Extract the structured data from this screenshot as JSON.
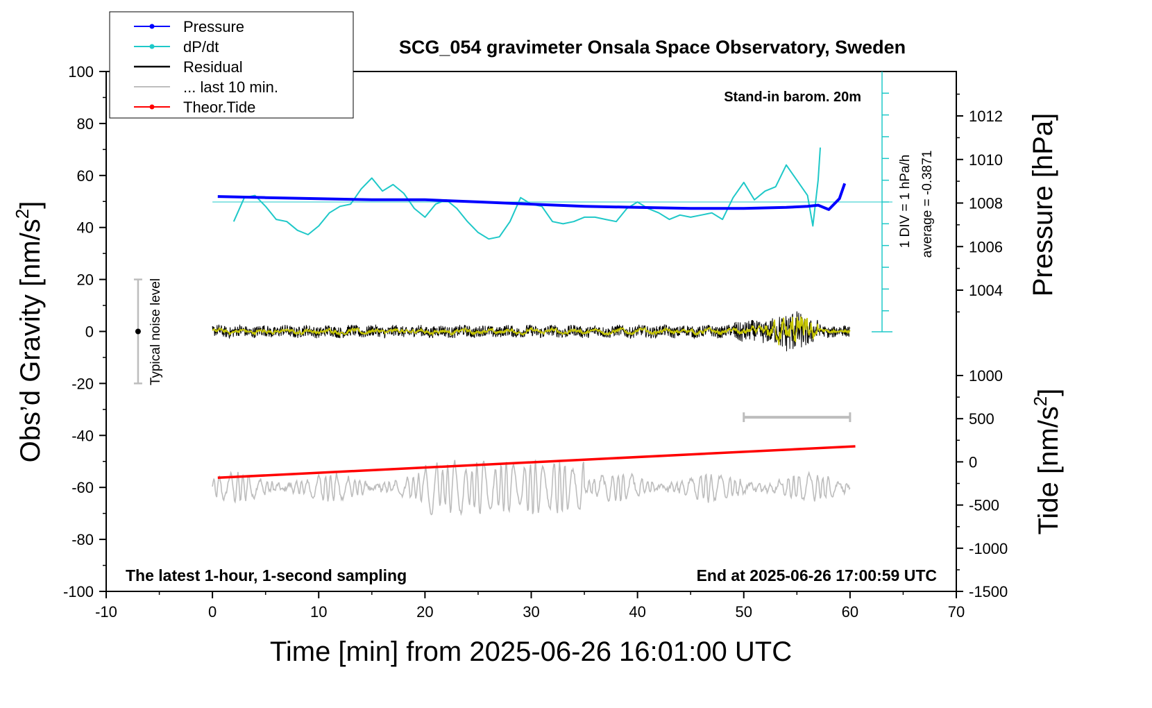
{
  "chart_data": {
    "type": "line",
    "title": "SCG_054 gravimeter Onsala Space Observatory, Sweden",
    "xlabel": "Time [min] from 2025-06-26 16:01:00 UTC",
    "xlim": [
      -10,
      70
    ],
    "x_ticks": [
      "-10",
      "0",
      "10",
      "20",
      "30",
      "40",
      "50",
      "60",
      "70"
    ],
    "left_axis": {
      "label_main": "Obs’d Gravity [nm/s",
      "label_sup": "2",
      "label_end": "]",
      "ylim": [
        -100,
        100
      ],
      "ticks": [
        "-100",
        "-80",
        "-60",
        "-40",
        "-20",
        "0",
        "20",
        "40",
        "60",
        "80",
        "100"
      ]
    },
    "pressure_axis": {
      "label": "Pressure [hPa]",
      "ticks": [
        "1004",
        "1006",
        "1008",
        "1010",
        "1012"
      ],
      "tick_values": [
        1004,
        1006,
        1008,
        1010,
        1012
      ]
    },
    "tide_axis": {
      "label_main": "Tide [nm/s",
      "label_sup": "2",
      "label_end": "]",
      "ticks": [
        "-1500",
        "-1000",
        "-500",
        "0",
        "500",
        "1000"
      ],
      "tick_values": [
        -1500,
        -1000,
        -500,
        0,
        500,
        1000
      ]
    },
    "legend": {
      "position": "top-left",
      "entries": [
        {
          "label": "Pressure",
          "color": "#0000ff",
          "marker": true
        },
        {
          "label": "dP/dt",
          "color": "#1ec8c8",
          "marker": true
        },
        {
          "label": "Residual",
          "color": "#000000",
          "marker": false
        },
        {
          "label": "... last 10 min.",
          "color": "#bdbdbd",
          "marker": false
        },
        {
          "label": "Theor.Tide",
          "color": "#ff0000",
          "marker": true
        }
      ]
    },
    "annotations": {
      "barometer": "Stand-in barom. 20m",
      "div_label": "1 DIV = 1 hPa/h",
      "average_label": "average = -0.3871",
      "noise_label": "Typical noise level",
      "bottom_left": "The latest 1-hour, 1-second sampling",
      "bottom_right": "End at 2025-06-26 17:00:59 UTC"
    },
    "series": [
      {
        "name": "Pressure",
        "color": "#0000ff",
        "x": [
          0.5,
          5,
          10,
          15,
          20,
          25,
          30,
          35,
          40,
          45,
          50,
          54,
          56,
          57,
          58,
          59,
          59.5
        ],
        "y": [
          1008.3,
          1008.25,
          1008.2,
          1008.15,
          1008.15,
          1008.05,
          1007.95,
          1007.85,
          1007.8,
          1007.75,
          1007.75,
          1007.8,
          1007.85,
          1007.9,
          1007.7,
          1008.2,
          1008.9
        ]
      },
      {
        "name": "dP/dt",
        "color": "#1ec8c8",
        "x": [
          2,
          3,
          4,
          5,
          6,
          7,
          8,
          9,
          10,
          11,
          12,
          13,
          14,
          15,
          16,
          17,
          18,
          19,
          20,
          21,
          22,
          23,
          24,
          25,
          26,
          27,
          28,
          29,
          30,
          31,
          32,
          33,
          34,
          35,
          36,
          37,
          38,
          39,
          40,
          41,
          42,
          43,
          44,
          45,
          46,
          47,
          48,
          49,
          50,
          51,
          52,
          53,
          54,
          55,
          56,
          56.5,
          57,
          57.2
        ],
        "y": [
          -0.9,
          0.2,
          0.3,
          -0.2,
          -0.8,
          -0.9,
          -1.3,
          -1.5,
          -1.1,
          -0.5,
          -0.2,
          -0.1,
          0.6,
          1.1,
          0.5,
          0.8,
          0.4,
          -0.3,
          -0.7,
          -0.1,
          0.1,
          -0.3,
          -0.9,
          -1.4,
          -1.7,
          -1.6,
          -0.9,
          0.2,
          -0.1,
          -0.2,
          -0.9,
          -1.0,
          -0.9,
          -0.7,
          -0.7,
          -0.8,
          -0.9,
          -0.3,
          0.0,
          -0.3,
          -0.5,
          -0.8,
          -0.6,
          -0.7,
          -0.6,
          -0.5,
          -0.8,
          0.2,
          0.9,
          0.1,
          0.5,
          0.7,
          1.7,
          1.0,
          0.3,
          -1.1,
          1.0,
          2.5
        ]
      },
      {
        "name": "Residual",
        "color": "#000000",
        "x_range": [
          0,
          60
        ],
        "y_range": [
          -9,
          13
        ]
      },
      {
        "name": "... last 10 min.",
        "color": "#bdbdbd",
        "x_range": [
          0,
          60
        ],
        "y_range": [
          -72,
          -48
        ]
      },
      {
        "name": "Theor.Tide",
        "color": "#ff0000",
        "x": [
          0.5,
          60.5
        ],
        "y": [
          -56.3,
          -44.2
        ]
      }
    ],
    "noise_level": {
      "x": -7,
      "y": [
        -20,
        20
      ]
    },
    "scale_bar": {
      "x": [
        50,
        60
      ],
      "y": -33
    }
  }
}
